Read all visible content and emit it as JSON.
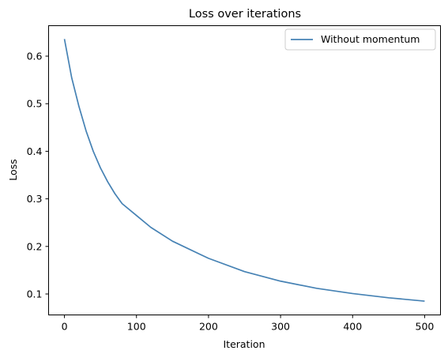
{
  "chart_data": {
    "type": "line",
    "title": "Loss over iterations",
    "xlabel": "Iteration",
    "ylabel": "Loss",
    "xlim": [
      -22,
      522
    ],
    "ylim": [
      0.056,
      0.664
    ],
    "xticks": [
      0,
      100,
      200,
      300,
      400,
      500
    ],
    "yticks": [
      0.1,
      0.2,
      0.3,
      0.4,
      0.5,
      0.6
    ],
    "grid": false,
    "legend_position": "top-right",
    "series": [
      {
        "name": "Without momentum",
        "color": "#4682b4",
        "x": [
          0,
          10,
          20,
          30,
          40,
          50,
          60,
          70,
          80,
          100,
          120,
          150,
          200,
          250,
          300,
          350,
          400,
          450,
          500
        ],
        "y": [
          0.636,
          0.555,
          0.495,
          0.443,
          0.4,
          0.365,
          0.336,
          0.311,
          0.29,
          0.265,
          0.24,
          0.211,
          0.175,
          0.147,
          0.127,
          0.112,
          0.101,
          0.092,
          0.085
        ]
      }
    ]
  }
}
